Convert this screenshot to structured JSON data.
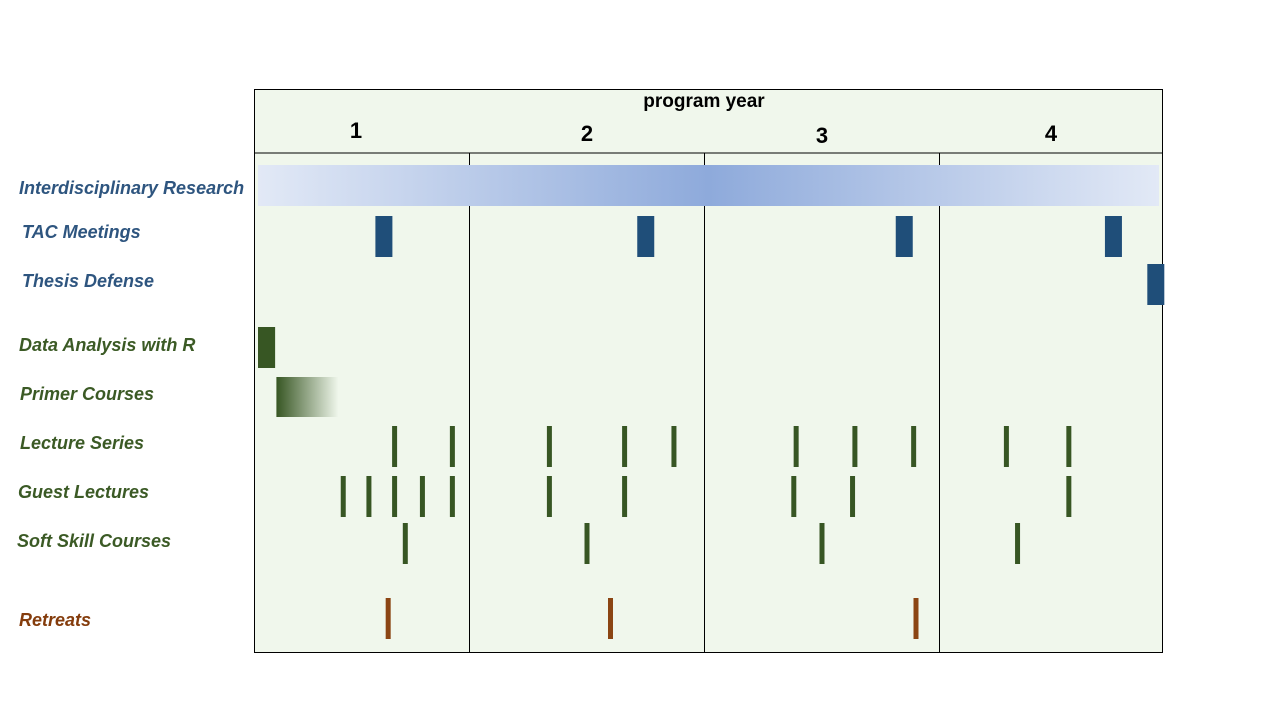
{
  "header": {
    "title": "program year",
    "years": [
      "1",
      "2",
      "3",
      "4"
    ]
  },
  "colors": {
    "background": "#f0f7ec",
    "blue_dark": "#1f4e79",
    "blue_label": "#2e557f",
    "green_dark": "#375623",
    "green_label": "#3b5a25",
    "brown": "#8b4513",
    "brown_label": "#843c0c",
    "research_gradient_center": "#8eaadb",
    "research_gradient_edge": "#e2e9f6"
  },
  "rows": [
    {
      "label": "Interdisciplinary  Research",
      "color": "blue_label"
    },
    {
      "label": "TAC Meetings",
      "color": "blue_label"
    },
    {
      "label": "Thesis Defense",
      "color": "blue_label"
    },
    {
      "label": "Data Analysis with R",
      "color": "green_label"
    },
    {
      "label": "Primer Courses",
      "color": "green_label"
    },
    {
      "label": "Lecture Series",
      "color": "green_label"
    },
    {
      "label": "Guest Lectures",
      "color": "green_label"
    },
    {
      "label": "Soft Skill Courses",
      "color": "green_label"
    },
    {
      "label": "Retreats",
      "color": "brown_label"
    }
  ],
  "chart_data": {
    "type": "timeline",
    "x_axis": {
      "label": "program year",
      "range": [
        0,
        4
      ],
      "ticks": [
        "1",
        "2",
        "3",
        "4"
      ]
    },
    "events": [
      {
        "row": "Interdisciplinary  Research",
        "kind": "gradient-span",
        "start": 0.0,
        "end": 4.0
      },
      {
        "row": "TAC Meetings",
        "kind": "block",
        "times": [
          0.6,
          1.75,
          2.85,
          3.78
        ]
      },
      {
        "row": "Thesis Defense",
        "kind": "block",
        "times": [
          3.97
        ]
      },
      {
        "row": "Data Analysis with R",
        "kind": "block",
        "start": 0.0,
        "end": 0.08
      },
      {
        "row": "Primer Courses",
        "kind": "fade-span",
        "start": 0.1,
        "end": 0.39
      },
      {
        "row": "Lecture Series",
        "kind": "tick",
        "times": [
          0.65,
          0.92,
          1.34,
          1.66,
          1.87,
          2.39,
          2.64,
          2.89,
          3.3,
          3.58
        ]
      },
      {
        "row": "Guest Lectures",
        "kind": "tick",
        "times": [
          0.41,
          0.53,
          0.65,
          0.78,
          0.92,
          1.34,
          1.66,
          2.38,
          2.63,
          3.58
        ]
      },
      {
        "row": "Soft Skill Courses",
        "kind": "tick",
        "times": [
          0.7,
          1.5,
          2.5,
          3.35
        ]
      },
      {
        "row": "Retreats",
        "kind": "tick",
        "times": [
          0.62,
          1.6,
          2.9
        ]
      }
    ]
  }
}
